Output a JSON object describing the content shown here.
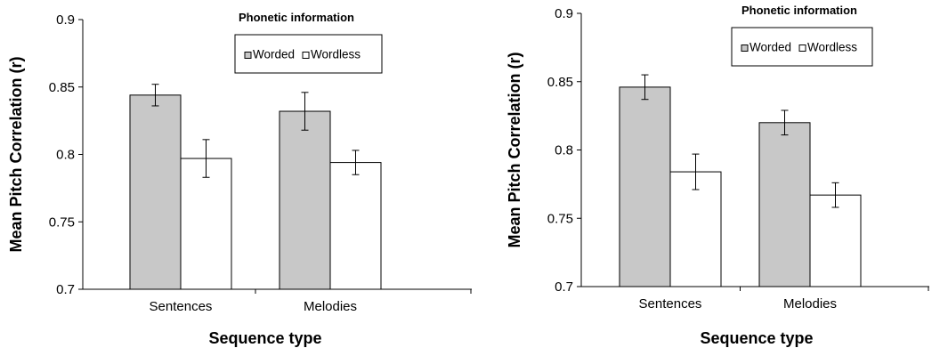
{
  "chart_data": [
    {
      "type": "bar",
      "categories": [
        "Sentences",
        "Melodies"
      ],
      "series": [
        {
          "name": "Worded",
          "values": [
            0.844,
            0.832
          ],
          "errors": [
            0.008,
            0.014
          ],
          "color": "#c8c8c8"
        },
        {
          "name": "Wordless",
          "values": [
            0.797,
            0.794
          ],
          "errors": [
            0.014,
            0.009
          ],
          "color": "#ffffff"
        }
      ],
      "title": "",
      "xlabel": "Sequence type",
      "ylabel": "Mean Pitch Correlation (r)",
      "ylim": [
        0.7,
        0.9
      ],
      "yticks": [
        "0.7",
        "0.75",
        "0.8",
        "0.85",
        "0.9"
      ],
      "legend_title": "Phonetic information",
      "legend_labels": [
        "Worded",
        "Wordless"
      ],
      "legend_position": "top-center",
      "grid": false
    },
    {
      "type": "bar",
      "categories": [
        "Sentences",
        "Melodies"
      ],
      "series": [
        {
          "name": "Worded",
          "values": [
            0.846,
            0.82
          ],
          "errors": [
            0.009,
            0.009
          ],
          "color": "#c8c8c8"
        },
        {
          "name": "Wordless",
          "values": [
            0.784,
            0.767
          ],
          "errors": [
            0.013,
            0.009
          ],
          "color": "#ffffff"
        }
      ],
      "title": "",
      "xlabel": "Sequence type",
      "ylabel": "Mean Pitch Correlation (r)",
      "ylim": [
        0.7,
        0.9
      ],
      "yticks": [
        "0.7",
        "0.75",
        "0.8",
        "0.85",
        "0.9"
      ],
      "legend_title": "Phonetic information",
      "legend_labels": [
        "Worded",
        "Wordless"
      ],
      "legend_position": "top-center",
      "grid": false
    }
  ]
}
